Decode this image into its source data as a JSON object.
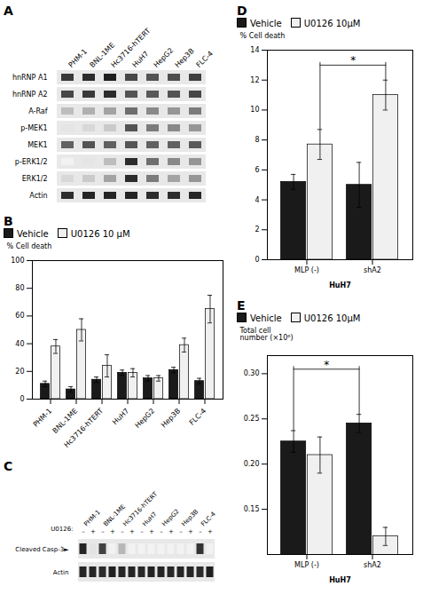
{
  "chart_data": [
    {
      "type": "heatmap",
      "title": "A",
      "x": [
        "PHM-1",
        "BNL-1ME",
        "Hc3716-hTERT",
        "HuH7",
        "HepG2",
        "Hep3B",
        "FLC-4"
      ],
      "y": [
        "hnRNP A1",
        "hnRNP A2",
        "A-Raf",
        "p-MEK1",
        "MEK1",
        "p-ERK1/2",
        "ERK1/2",
        "Actin"
      ],
      "cells": [
        [
          0.8,
          0.85,
          0.9,
          0.75,
          0.7,
          0.72,
          0.78
        ],
        [
          0.75,
          0.8,
          0.85,
          0.7,
          0.68,
          0.7,
          0.75
        ],
        [
          0.3,
          0.35,
          0.4,
          0.6,
          0.5,
          0.45,
          0.55
        ],
        [
          0.15,
          0.2,
          0.25,
          0.7,
          0.55,
          0.5,
          0.45
        ],
        [
          0.65,
          0.7,
          0.65,
          0.7,
          0.65,
          0.65,
          0.68
        ],
        [
          0.1,
          0.15,
          0.3,
          0.85,
          0.6,
          0.5,
          0.45
        ],
        [
          0.2,
          0.25,
          0.4,
          0.85,
          0.55,
          0.4,
          0.45
        ],
        [
          0.85,
          0.88,
          0.88,
          0.88,
          0.85,
          0.85,
          0.87
        ]
      ]
    },
    {
      "type": "bar",
      "title": "B",
      "categories": [
        "PHM-1",
        "BNL-1ME",
        "Hc3716-hTERT",
        "HuH7",
        "HepG2",
        "Hep3B",
        "FLC-4"
      ],
      "series": [
        {
          "name": "Vehicle",
          "color": "#1a1a1a",
          "values": [
            11,
            7,
            14,
            19,
            15,
            21,
            13
          ],
          "errors": [
            2,
            2,
            2,
            2,
            2,
            2,
            2
          ]
        },
        {
          "name": "U0126 10 μM",
          "color": "#f0f0f0",
          "values": [
            38,
            50,
            24,
            19,
            15,
            39,
            65
          ],
          "errors": [
            5,
            8,
            8,
            3,
            2,
            5,
            10
          ]
        }
      ],
      "ylabel": "% Cell death",
      "ylim": [
        0,
        100
      ],
      "yticks": [
        0,
        20,
        40,
        60,
        80,
        100
      ],
      "legend": "upper left"
    },
    {
      "type": "heatmap",
      "title": "C",
      "groups": [
        "PHM-1",
        "BNL-1ME",
        "Hc3716-hTERT",
        "HuH7",
        "HepG2",
        "Hep3B",
        "FLC-4"
      ],
      "xlabel": "U0126:",
      "x": [
        "–",
        "+",
        "–",
        "+",
        "–",
        "+",
        "–",
        "+",
        "–",
        "+",
        "–",
        "+",
        "–",
        "+"
      ],
      "y": [
        "Cleaved Casp-3►",
        "Actin"
      ],
      "cells": [
        [
          0.8,
          0.15,
          0.7,
          0.1,
          0.3,
          0.1,
          0.1,
          0.1,
          0.1,
          0.1,
          0.1,
          0.1,
          0.75,
          0.1
        ],
        [
          0.8,
          0.8,
          0.78,
          0.82,
          0.8,
          0.8,
          0.79,
          0.81,
          0.8,
          0.79,
          0.8,
          0.8,
          0.78,
          0.82
        ]
      ]
    },
    {
      "type": "bar",
      "title": "D",
      "categories": [
        "MLP (-)",
        "shA2"
      ],
      "series": [
        {
          "name": "Vehicle",
          "color": "#1a1a1a",
          "values": [
            5.2,
            5.0
          ],
          "errors": [
            0.5,
            1.5
          ]
        },
        {
          "name": "U0126 10μM",
          "color": "#f0f0f0",
          "values": [
            7.7,
            11.0
          ],
          "errors": [
            1.0,
            1.0
          ]
        }
      ],
      "xlabel": "HuH7",
      "ylabel": "% Cell death",
      "ylim": [
        0,
        14
      ],
      "yticks": [
        0,
        2,
        4,
        6,
        8,
        10,
        12,
        14
      ],
      "legend": "upper left",
      "annotations": [
        {
          "text": "*",
          "y": 13.0,
          "series": "U0126 10μM",
          "categories": [
            "MLP (-)",
            "shA2"
          ]
        }
      ]
    },
    {
      "type": "bar",
      "title": "E",
      "categories": [
        "MLP (-)",
        "shA2"
      ],
      "series": [
        {
          "name": "Vehicle",
          "color": "#1a1a1a",
          "values": [
            0.225,
            0.245
          ],
          "errors": [
            0.012,
            0.01
          ]
        },
        {
          "name": "U0126 10μM",
          "color": "#f0f0f0",
          "values": [
            0.21,
            0.12
          ],
          "errors": [
            0.02,
            0.01
          ]
        }
      ],
      "xlabel": "HuH7",
      "ylabel": "Total cell\nnumber (×10⁶)",
      "ylim": [
        0.1,
        0.32
      ],
      "yticks": [
        0.15,
        {
          "value": 0.2,
          "label": "0.20"
        },
        0.25,
        {
          "value": 0.3,
          "label": "0.30"
        }
      ],
      "legend": "upper left",
      "annotations": [
        {
          "text": "*",
          "y": 0.305,
          "series": "Vehicle",
          "categories": [
            "MLP (-)",
            "shA2"
          ]
        }
      ]
    }
  ]
}
